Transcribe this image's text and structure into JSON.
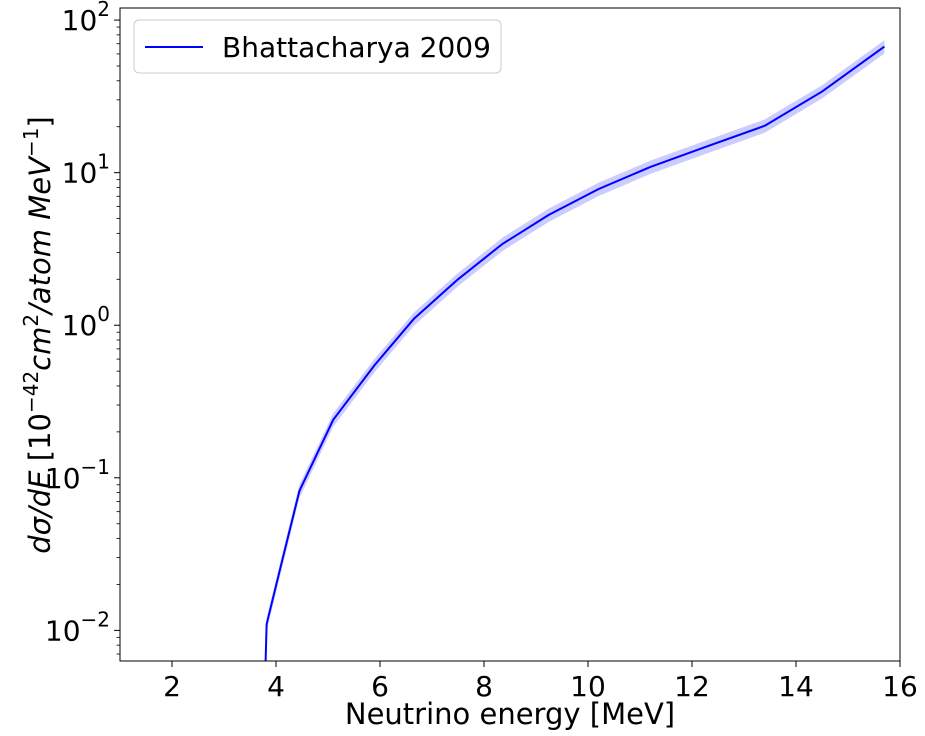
{
  "chart_data": {
    "type": "line",
    "xlabel": "Neutrino energy [MeV]",
    "ylabel_parts": {
      "italic_a": "dσ/dE",
      "bracket_open": " [10",
      "exp_1": "−42",
      "italic_b": "cm",
      "exp_2": "2",
      "italic_c": "/atom MeV",
      "exp_3": "−1",
      "bracket_close": "]"
    },
    "xlim": [
      1.0,
      16.0
    ],
    "ylim": [
      0.0063,
      120
    ],
    "yscale": "log",
    "x_ticks": [
      {
        "value": 2,
        "label": "2"
      },
      {
        "value": 4,
        "label": "4"
      },
      {
        "value": 6,
        "label": "6"
      },
      {
        "value": 8,
        "label": "8"
      },
      {
        "value": 10,
        "label": "10"
      },
      {
        "value": 12,
        "label": "12"
      },
      {
        "value": 14,
        "label": "14"
      },
      {
        "value": 16,
        "label": "16"
      }
    ],
    "y_ticks": [
      {
        "value": 0.01,
        "base": "10",
        "exp": "−2"
      },
      {
        "value": 0.1,
        "base": "10",
        "exp": "−1"
      },
      {
        "value": 1,
        "base": "10",
        "exp": "0"
      },
      {
        "value": 10,
        "base": "10",
        "exp": "1"
      },
      {
        "value": 100,
        "base": "10",
        "exp": "2"
      }
    ],
    "grid": false,
    "legend_position": "top-left",
    "series": [
      {
        "name": "Bhattacharya 2009",
        "color": "#0000ff",
        "band_color": "#0000ff",
        "band_opacity": 0.2,
        "band_fraction": 0.1,
        "points": [
          [
            3.8,
            0.0063
          ],
          [
            3.82,
            0.011
          ],
          [
            4.1,
            0.027
          ],
          [
            4.45,
            0.082
          ],
          [
            5.1,
            0.24
          ],
          [
            5.9,
            0.55
          ],
          [
            6.65,
            1.1
          ],
          [
            7.5,
            2.0
          ],
          [
            8.35,
            3.4
          ],
          [
            9.25,
            5.3
          ],
          [
            10.2,
            7.8
          ],
          [
            11.2,
            10.9
          ],
          [
            12.3,
            14.9
          ],
          [
            13.4,
            20.3
          ],
          [
            14.5,
            34
          ],
          [
            15.7,
            67
          ]
        ]
      }
    ]
  }
}
